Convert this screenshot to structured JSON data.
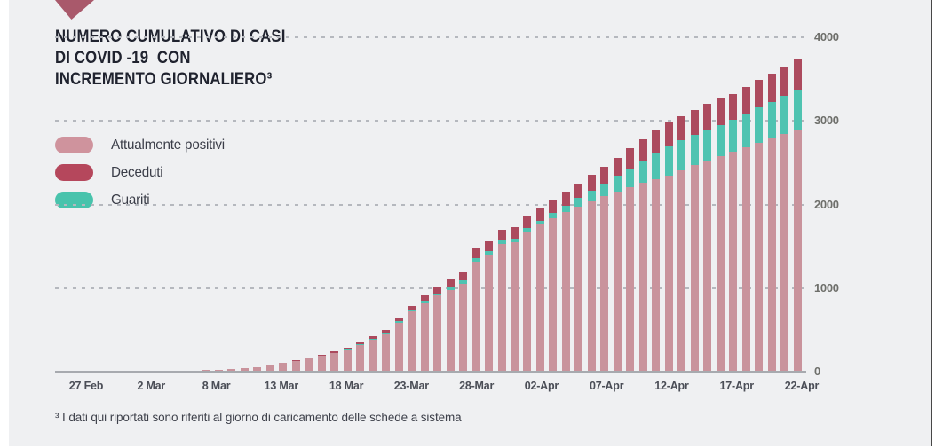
{
  "title": {
    "line1": "NUMERO CUMULATIVO DI CASI",
    "line2": "DI COVID -19  CON",
    "line3": "INCREMENTO GIORNALIERO³"
  },
  "legend": {
    "items": [
      {
        "label": "Attualmente positivi",
        "color": "#cf939d"
      },
      {
        "label": "Deceduti",
        "color": "#b5475c"
      },
      {
        "label": "Guariti",
        "color": "#48c3ac"
      }
    ]
  },
  "footnote": {
    "text": "³ I dati qui riportati sono riferiti al giorno di caricamento delle schede a sistema"
  },
  "colors": {
    "panel_background": "#eff0f2",
    "bar_positivi": "#c9939c",
    "bar_guariti": "#4fc3b1",
    "bar_deceduti": "#ac4a5e",
    "gridline": "#b5b8be",
    "axis_line": "#a7aaaf",
    "title_text": "#20232f",
    "tick_text": "#6e6f6b",
    "accent_triangle": "#a9596b"
  },
  "chart_data": {
    "type": "bar",
    "stacked": true,
    "title": "NUMERO CUMULATIVO DI CASI DI COVID-19 CON INCREMENTO GIORNALIERO",
    "n_bars": 56,
    "x_tick_labels": [
      "27 Feb",
      "2 Mar",
      "8 Mar",
      "13 Mar",
      "18 Mar",
      "23-Mar",
      "28-Mar",
      "02-Apr",
      "07-Apr",
      "12-Apr",
      "17-Apr",
      "22-Apr"
    ],
    "x_tick_bar_indices": [
      0,
      5,
      10,
      15,
      20,
      25,
      30,
      35,
      40,
      45,
      50,
      55
    ],
    "y_ticks": [
      0,
      1000,
      2000,
      3000,
      4000
    ],
    "ylim": [
      0,
      4000
    ],
    "grid": "horizontal-dashed",
    "legend_position": "left",
    "stack_order_bottom_to_top": [
      "Attualmente positivi",
      "Guariti",
      "Deceduti"
    ],
    "series": [
      {
        "name": "Attualmente positivi",
        "color": "#c9939c",
        "values": [
          2,
          3,
          4,
          5,
          6,
          8,
          10,
          13,
          16,
          19,
          23,
          31,
          41,
          55,
          77,
          106,
          130,
          158,
          189,
          225,
          270,
          323,
          385,
          457,
          587,
          725,
          827,
          909,
          980,
          1051,
          1315,
          1392,
          1528,
          1547,
          1673,
          1759,
          1835,
          1909,
          1976,
          2042,
          2100,
          2152,
          2204,
          2256,
          2303,
          2350,
          2409,
          2468,
          2527,
          2581,
          2630,
          2687,
          2739,
          2791,
          2843,
          2895
        ]
      },
      {
        "name": "Guariti",
        "color": "#4fc3b1",
        "values": [
          0,
          0,
          0,
          0,
          0,
          0,
          0,
          0,
          0,
          0,
          0,
          0,
          0,
          0,
          0,
          0,
          0,
          0,
          2,
          3,
          5,
          7,
          9,
          11,
          13,
          15,
          21,
          27,
          33,
          39,
          45,
          46,
          47,
          48,
          49,
          50,
          62,
          80,
          101,
          124,
          150,
          190,
          230,
          270,
          310,
          350,
          356,
          362,
          368,
          374,
          380,
          399,
          418,
          437,
          456,
          475
        ]
      },
      {
        "name": "Deceduti",
        "color": "#ac4a5e",
        "values": [
          0,
          0,
          0,
          0,
          0,
          0,
          0,
          0,
          0,
          1,
          1,
          1,
          2,
          2,
          3,
          4,
          5,
          7,
          9,
          12,
          15,
          20,
          26,
          32,
          40,
          50,
          62,
          74,
          87,
          100,
          115,
          121,
          127,
          133,
          139,
          145,
          155,
          166,
          177,
          188,
          200,
          218,
          236,
          254,
          272,
          290,
          295,
          300,
          305,
          310,
          315,
          324,
          333,
          342,
          351,
          360
        ]
      }
    ]
  }
}
